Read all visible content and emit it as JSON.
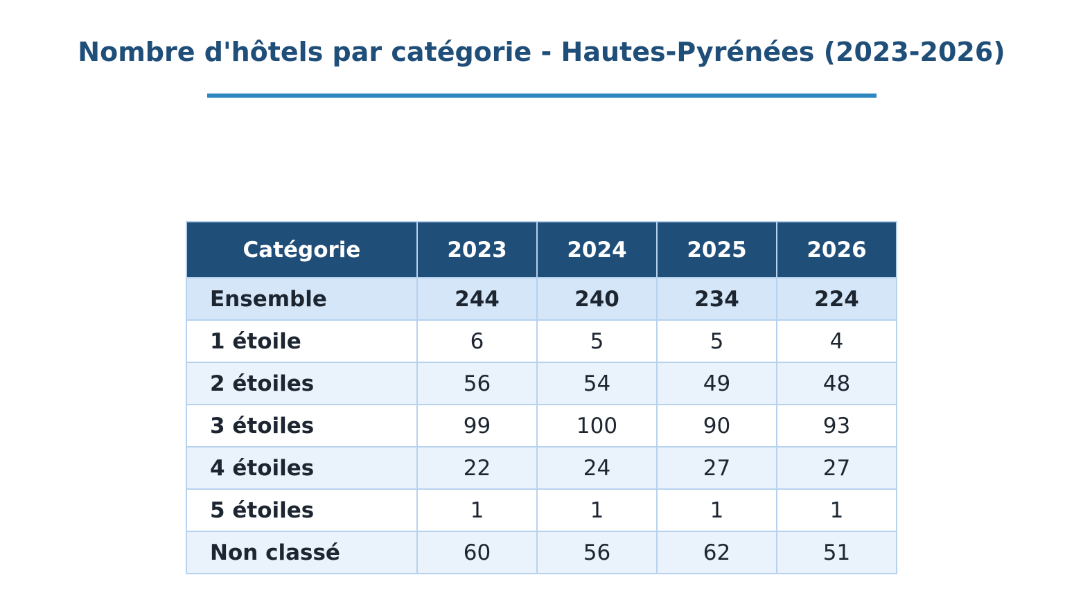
{
  "colors": {
    "title": "#1f4e79",
    "accent_rule": "#2e86c1",
    "header_bg": "#1f4e79",
    "total_row_bg": "#d4e6f8",
    "odd_row_bg": "#ffffff",
    "even_row_bg": "#eaf3fc",
    "grid": "#b7d2ee"
  },
  "chart_data": {
    "type": "table",
    "title": "Nombre d'hôtels par catégorie - Hautes-Pyrénées (2023-2026)",
    "columns": [
      "Catégorie",
      "2023",
      "2024",
      "2025",
      "2026"
    ],
    "rows": [
      {
        "label": "Ensemble",
        "values": [
          244,
          240,
          234,
          224
        ],
        "total": true
      },
      {
        "label": "1 étoile",
        "values": [
          6,
          5,
          5,
          4
        ]
      },
      {
        "label": "2 étoiles",
        "values": [
          56,
          54,
          49,
          48
        ]
      },
      {
        "label": "3 étoiles",
        "values": [
          99,
          100,
          90,
          93
        ]
      },
      {
        "label": "4 étoiles",
        "values": [
          22,
          24,
          27,
          27
        ]
      },
      {
        "label": "5 étoiles",
        "values": [
          1,
          1,
          1,
          1
        ]
      },
      {
        "label": "Non classé",
        "values": [
          60,
          56,
          62,
          51
        ]
      }
    ]
  }
}
